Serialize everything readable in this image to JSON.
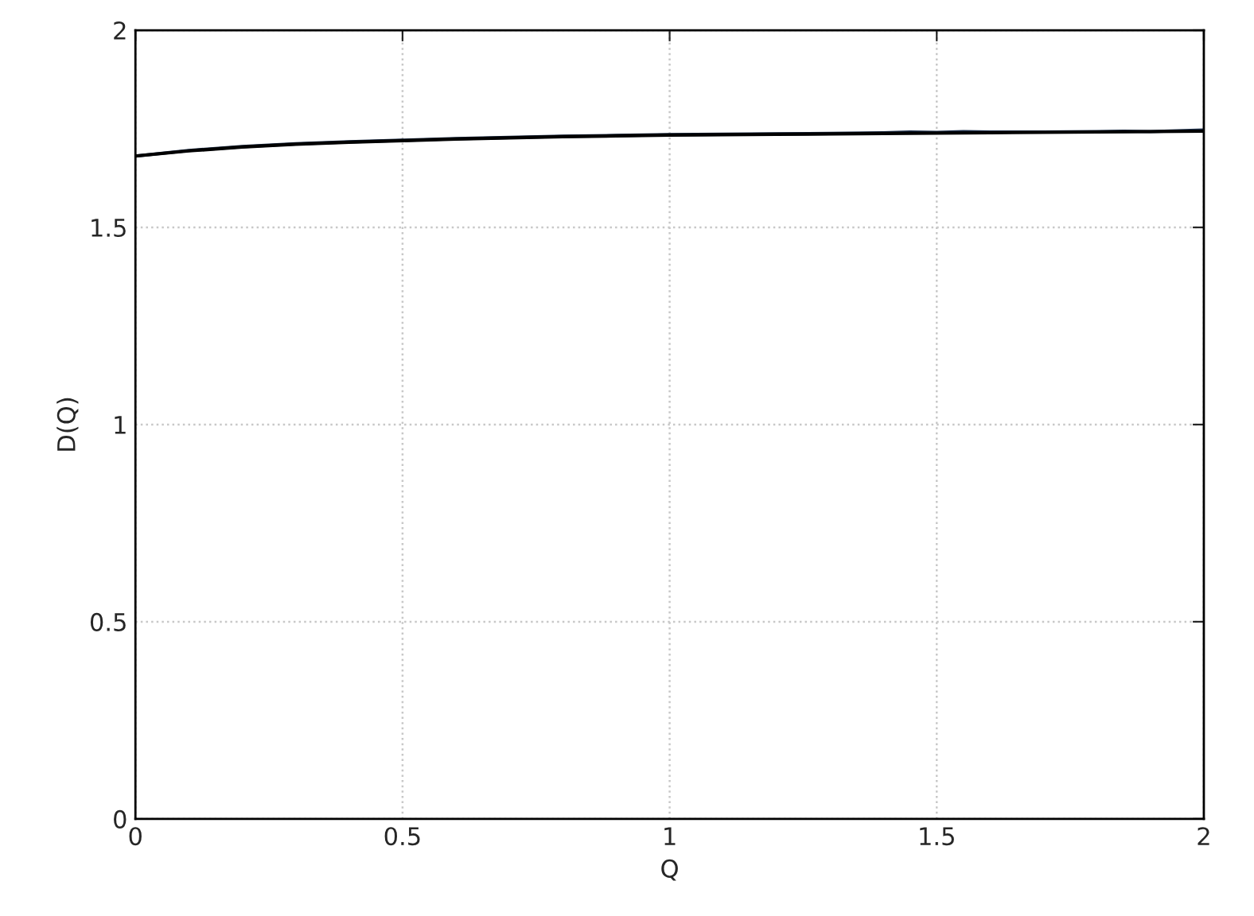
{
  "chart_data": {
    "type": "line",
    "xlabel": "Q",
    "ylabel": "D(Q)",
    "series": [
      {
        "color": "#1c2e4a",
        "x": [
          0,
          0.1,
          0.2,
          0.3,
          0.4,
          0.5,
          0.6,
          0.7,
          0.8,
          0.9,
          1.0,
          1.1,
          1.2,
          1.3,
          1.4,
          1.45,
          1.5,
          1.55,
          1.6,
          1.7,
          1.8,
          1.85,
          1.9,
          2.0
        ],
        "values": [
          1.681,
          1.695,
          1.705,
          1.712,
          1.717,
          1.721,
          1.725,
          1.728,
          1.731,
          1.733,
          1.735,
          1.736,
          1.737,
          1.738,
          1.74,
          1.742,
          1.741,
          1.743,
          1.742,
          1.742,
          1.743,
          1.744,
          1.743,
          1.747
        ]
      },
      {
        "color": "#000000",
        "x": [
          0,
          0.1,
          0.2,
          0.3,
          0.4,
          0.5,
          0.6,
          0.7,
          0.8,
          0.9,
          1.0,
          1.2,
          1.4,
          1.6,
          1.8,
          2.0
        ],
        "values": [
          1.681,
          1.694,
          1.704,
          1.711,
          1.716,
          1.72,
          1.724,
          1.727,
          1.73,
          1.732,
          1.734,
          1.736,
          1.738,
          1.74,
          1.742,
          1.744
        ]
      }
    ],
    "xlim": [
      0,
      2
    ],
    "ylim": [
      0,
      2
    ],
    "xticks": [
      0,
      0.5,
      1,
      1.5,
      2
    ],
    "yticks": [
      0,
      0.5,
      1,
      1.5,
      2
    ],
    "grid": true,
    "line_style": "solid",
    "marker": "none"
  }
}
